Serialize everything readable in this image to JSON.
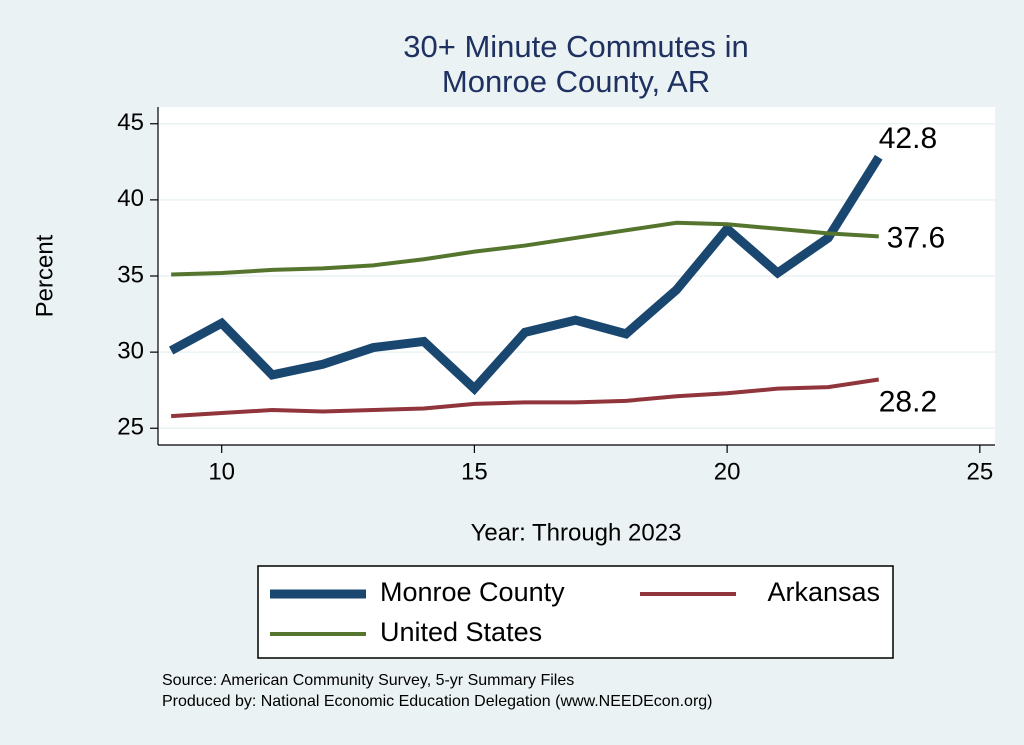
{
  "chart_data": {
    "type": "line",
    "title": [
      "30+ Minute Commutes in",
      "Monroe County, AR"
    ],
    "x_label": "Year: Through 2023",
    "y_label": "Percent",
    "x": [
      9,
      10,
      11,
      12,
      13,
      14,
      15,
      16,
      17,
      18,
      19,
      20,
      21,
      22,
      23
    ],
    "series": [
      {
        "name": "Monroe County",
        "color": "#1a476f",
        "width": 9,
        "values": [
          30.1,
          31.9,
          28.5,
          29.2,
          30.3,
          30.7,
          27.6,
          31.3,
          32.1,
          31.2,
          34.1,
          38.1,
          35.2,
          37.5,
          42.8
        ]
      },
      {
        "name": "Arkansas",
        "color": "#90353b",
        "width": 4,
        "values": [
          25.8,
          26.0,
          26.2,
          26.1,
          26.2,
          26.3,
          26.6,
          26.7,
          26.7,
          26.8,
          27.1,
          27.3,
          27.6,
          27.7,
          28.2
        ]
      },
      {
        "name": "United States",
        "color": "#55752f",
        "width": 4,
        "values": [
          35.1,
          35.2,
          35.4,
          35.5,
          35.7,
          36.1,
          36.6,
          37.0,
          37.5,
          38.0,
          38.5,
          38.4,
          38.1,
          37.8,
          37.6
        ]
      }
    ],
    "xlim": [
      8.74,
      25.3
    ],
    "ylim": [
      23.9,
      46.1
    ],
    "xticks": [
      10,
      15,
      20,
      25
    ],
    "yticks": [
      25,
      30,
      35,
      40,
      45
    ],
    "grid": true,
    "notes": [
      "Source: American Community Survey, 5-yr Summary Files",
      "Produced by: National Economic Education Delegation (www.NEEDEcon.org)"
    ]
  }
}
